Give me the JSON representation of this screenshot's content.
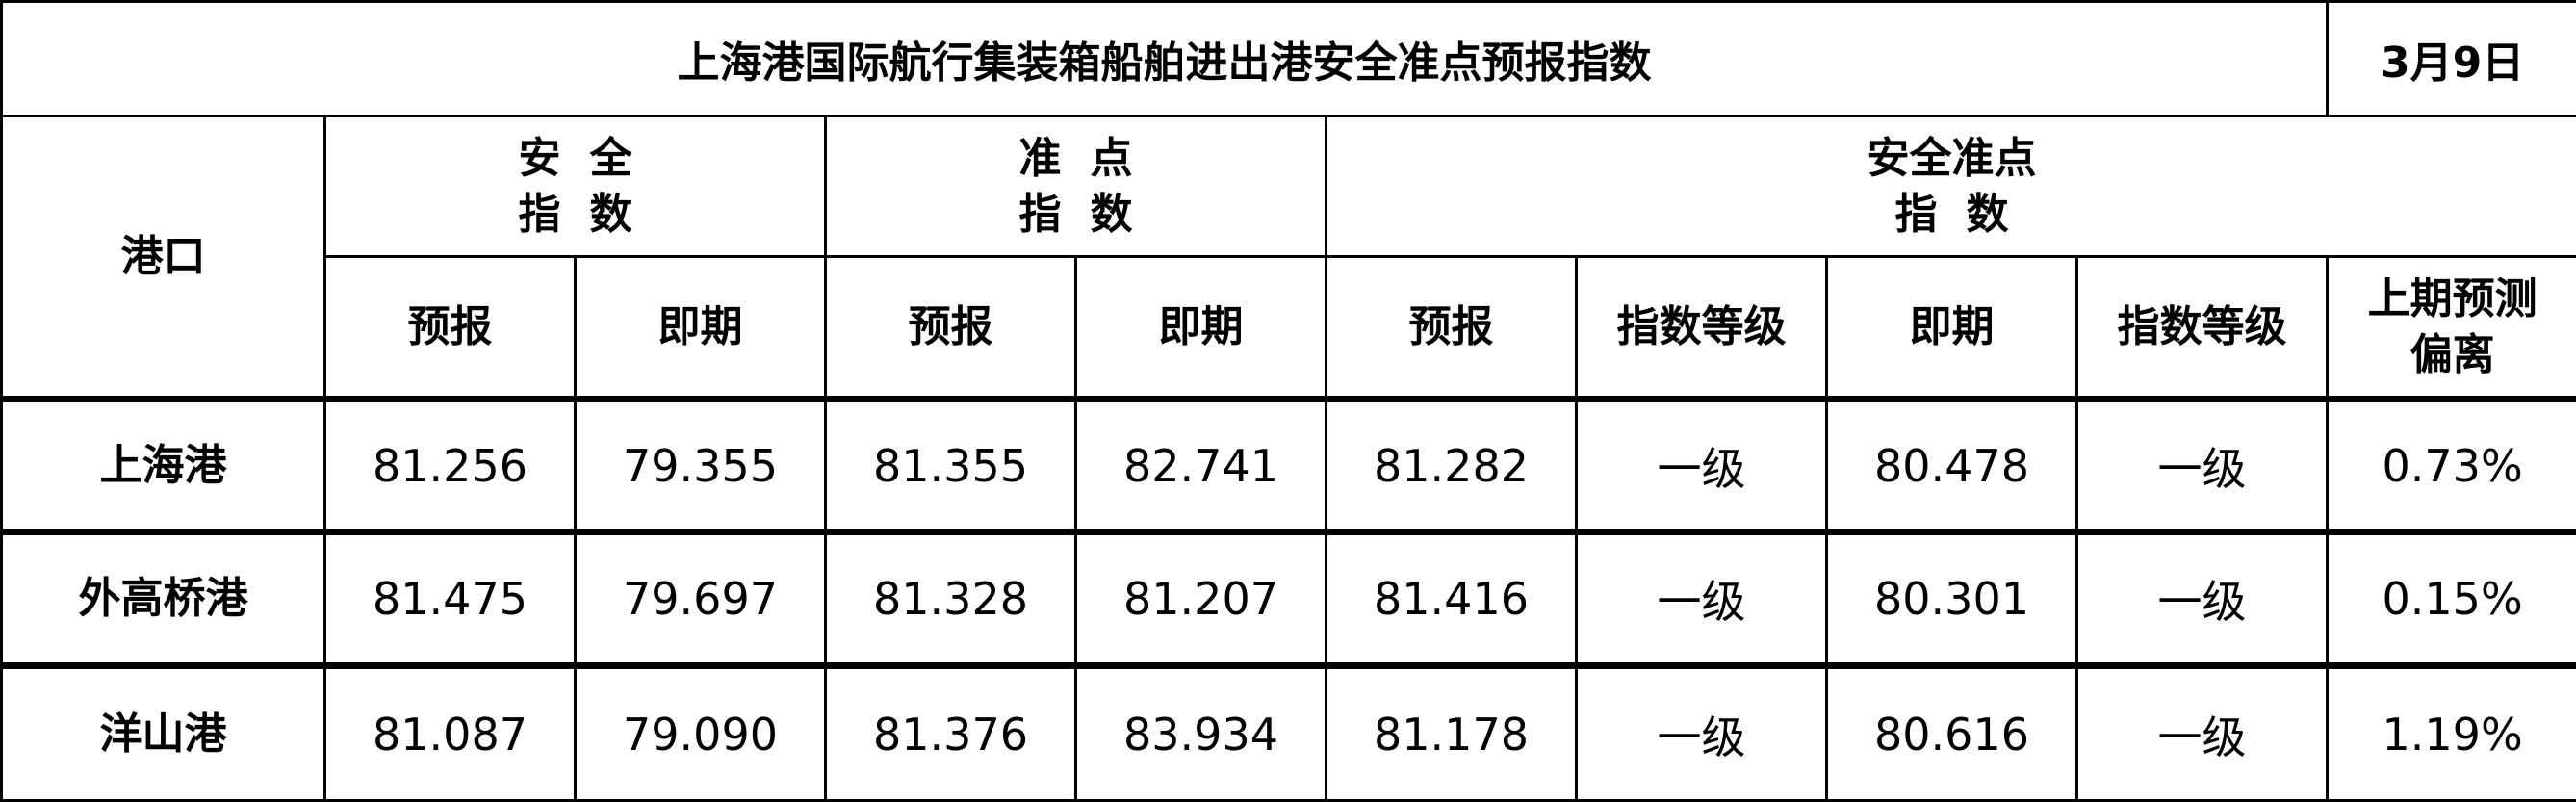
{
  "title": "上海港国际航行集装箱船舶进出港安全准点预报指数",
  "date": "3月9日",
  "headers": {
    "port": "港口",
    "safety": [
      "安全",
      "指数"
    ],
    "punctual": [
      "准点",
      "指数"
    ],
    "combined": [
      "安全准点",
      "指数"
    ],
    "forecast": "预报",
    "current": "即期",
    "level": "指数等级",
    "deviation": [
      "上期预测",
      "偏离"
    ]
  },
  "rows": [
    {
      "port": "上海港",
      "safety_forecast": "81.256",
      "safety_current": "79.355",
      "punct_forecast": "81.355",
      "punct_current": "82.741",
      "comb_forecast": "81.282",
      "comb_forecast_level": "一级",
      "comb_current": "80.478",
      "comb_current_level": "一级",
      "deviation": "0.73%"
    },
    {
      "port": "外高桥港",
      "safety_forecast": "81.475",
      "safety_current": "79.697",
      "punct_forecast": "81.328",
      "punct_current": "81.207",
      "comb_forecast": "81.416",
      "comb_forecast_level": "一级",
      "comb_current": "80.301",
      "comb_current_level": "一级",
      "deviation": "0.15%"
    },
    {
      "port": "洋山港",
      "safety_forecast": "81.087",
      "safety_current": "79.090",
      "punct_forecast": "81.376",
      "punct_current": "83.934",
      "comb_forecast": "81.178",
      "comb_forecast_level": "一级",
      "comb_current": "80.616",
      "comb_current_level": "一级",
      "deviation": "1.19%"
    }
  ]
}
